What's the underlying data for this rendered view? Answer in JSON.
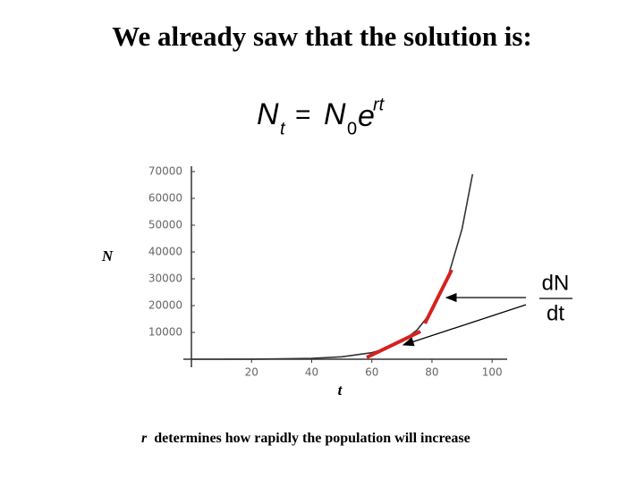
{
  "chart_data": {
    "type": "line",
    "title": "We already saw that the solution is:",
    "equation": {
      "lhs": "N",
      "lhs_sub": "t",
      "equals": "=",
      "rhs": "N",
      "rhs_sub": "0",
      "base": "e",
      "exponent": "rt"
    },
    "derivative": {
      "numerator": "dN",
      "denominator": "dt"
    },
    "y_label": "N",
    "x_label": "t",
    "caption": {
      "variable": "r",
      "text": "determines how rapidly the population will increase"
    },
    "x": [
      0,
      10,
      20,
      30,
      40,
      50,
      60,
      65,
      70,
      75,
      80,
      85,
      90,
      93.5
    ],
    "values": [
      6,
      16,
      44,
      121,
      328,
      890,
      2421,
      3991,
      6580,
      10849,
      17886,
      29489,
      48619,
      68990
    ],
    "color": "#333333",
    "xlim": [
      0,
      105
    ],
    "ylim": [
      0,
      72000
    ],
    "xticks": [
      20,
      40,
      60,
      80,
      100
    ],
    "yticks": [
      10000,
      20000,
      30000,
      40000,
      50000,
      60000,
      70000
    ]
  }
}
